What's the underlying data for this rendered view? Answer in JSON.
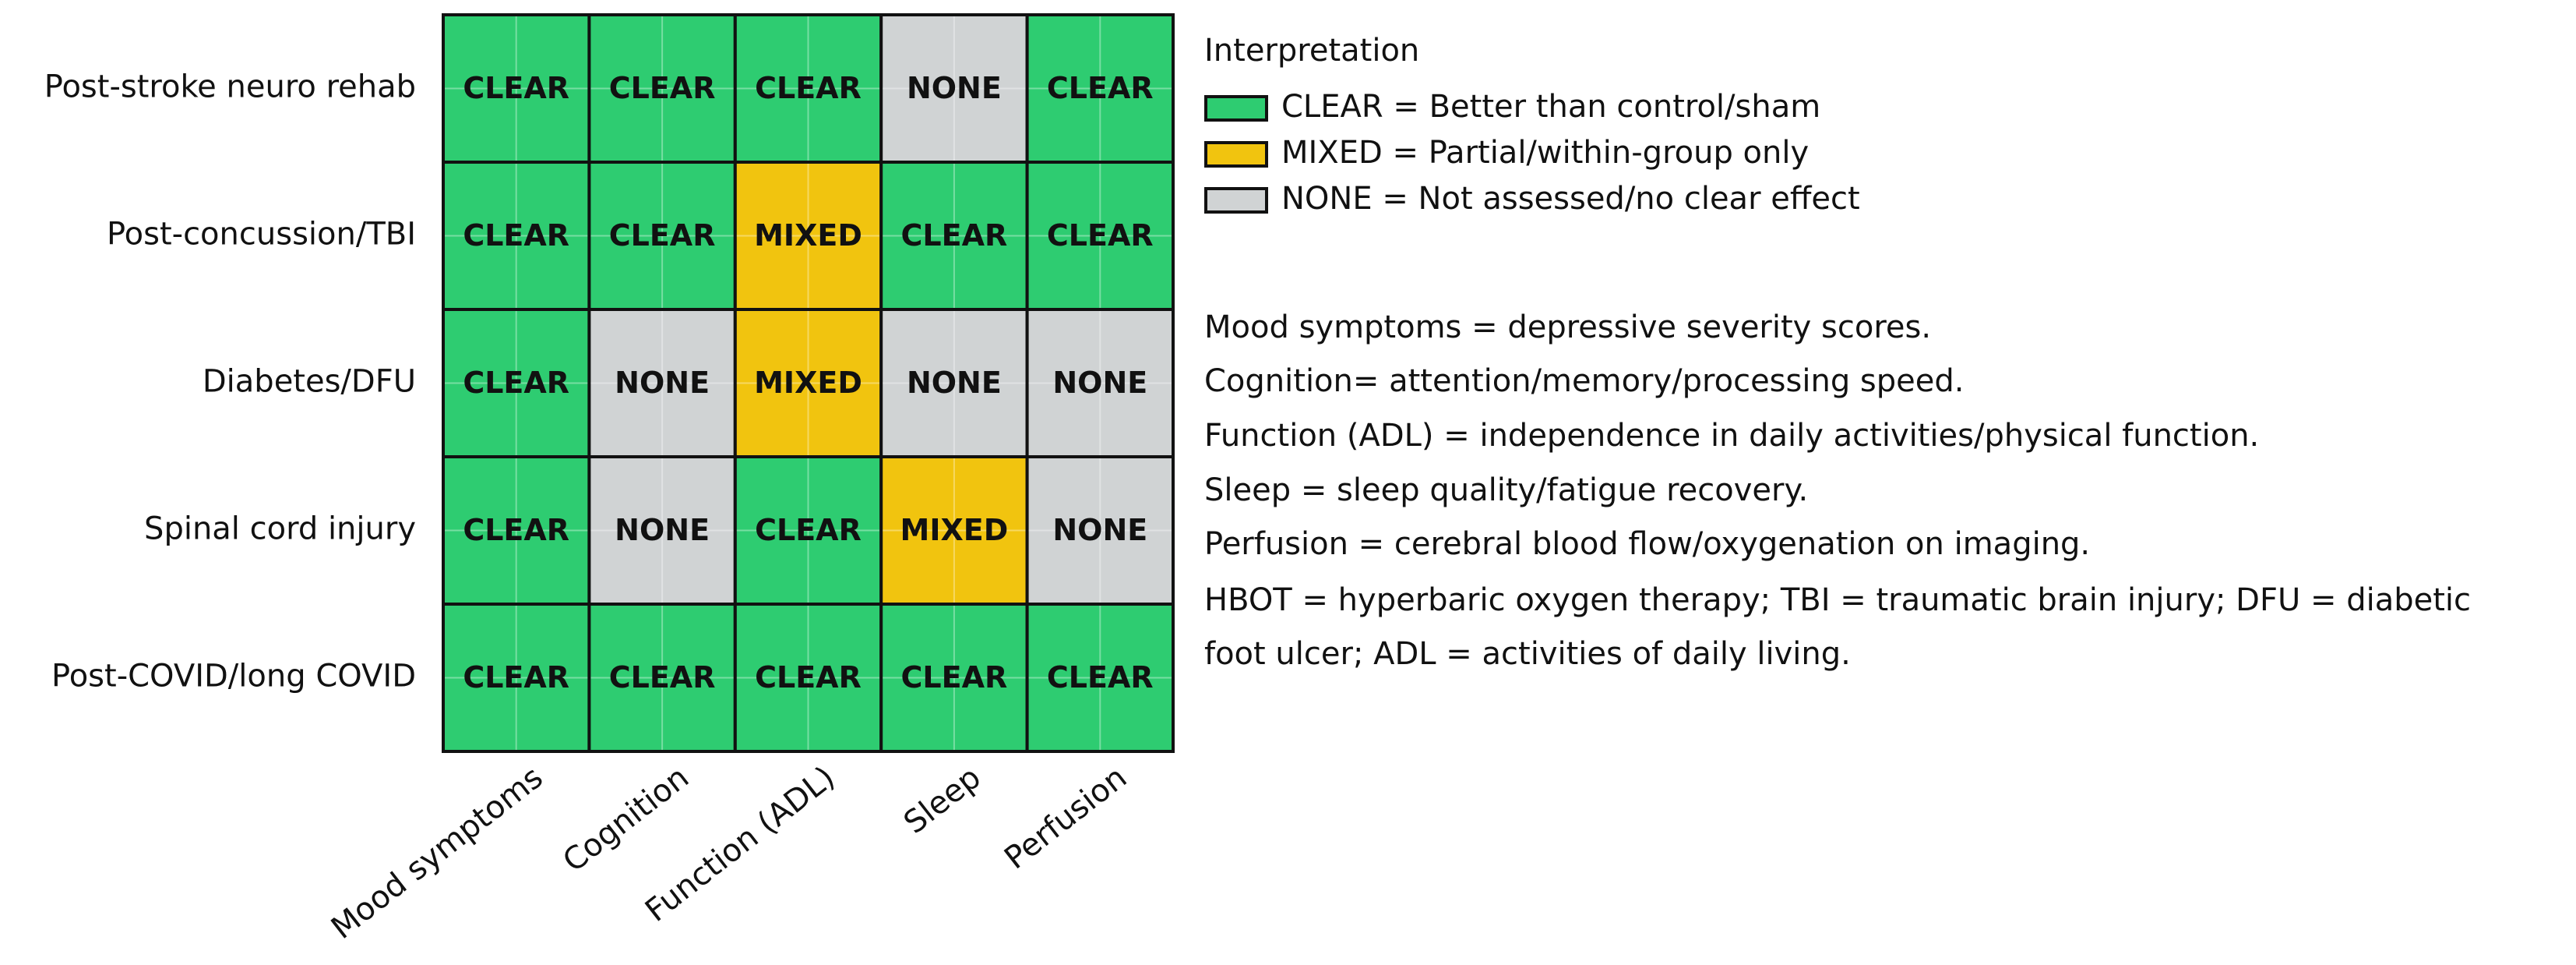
{
  "chart_data": {
    "type": "heatmap",
    "rows": [
      "Post-stroke neuro rehab",
      "Post-concussion/TBI",
      "Diabetes/DFU",
      "Spinal cord injury",
      "Post-COVID/long COVID"
    ],
    "columns": [
      "Mood symptoms",
      "Cognition",
      "Function (ADL)",
      "Sleep",
      "Perfusion"
    ],
    "cells": [
      [
        "CLEAR",
        "CLEAR",
        "CLEAR",
        "NONE",
        "CLEAR"
      ],
      [
        "CLEAR",
        "CLEAR",
        "MIXED",
        "CLEAR",
        "CLEAR"
      ],
      [
        "CLEAR",
        "NONE",
        "MIXED",
        "NONE",
        "NONE"
      ],
      [
        "CLEAR",
        "NONE",
        "CLEAR",
        "MIXED",
        "NONE"
      ],
      [
        "CLEAR",
        "CLEAR",
        "CLEAR",
        "CLEAR",
        "CLEAR"
      ]
    ],
    "legend_title": "Interpretation",
    "legend": [
      {
        "label": "CLEAR = Better than control/sham",
        "color": "#2ecc71"
      },
      {
        "label": "MIXED = Partial/within-group only",
        "color": "#f1c40f"
      },
      {
        "label": "NONE = Not assessed/no clear effect",
        "color": "#d0d3d4"
      }
    ],
    "notes": [
      "Mood symptoms = depressive severity scores.",
      "Cognition= attention/memory/processing speed.",
      "Function (ADL) = independence in daily activities/physical function.",
      "Sleep = sleep quality/fatigue recovery.",
      "Perfusion = cerebral blood flow/oxygenation on imaging.",
      "HBOT = hyperbaric oxygen therapy; TBI = traumatic brain injury; DFU = diabetic",
      "foot ulcer; ADL = activities of daily living."
    ]
  }
}
